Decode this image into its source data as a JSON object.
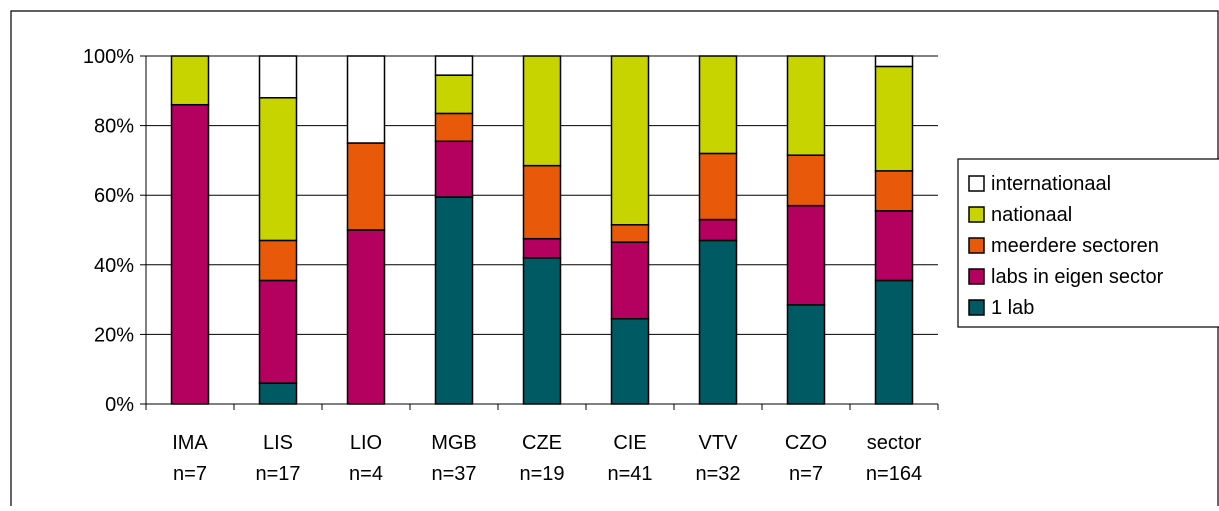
{
  "chart_data": {
    "type": "bar",
    "stacked": true,
    "percent": true,
    "categories": [
      "IMA\nn=7",
      "LIS\nn=17",
      "LIO\nn=4",
      "MGB\nn=37",
      "CZE\nn=19",
      "CIE\nn=41",
      "VTV\nn=32",
      "CZO\nn=7",
      "sector\nn=164"
    ],
    "series": [
      {
        "name": "1 lab",
        "color": "#005a64",
        "values": [
          0,
          6,
          0,
          59.5,
          42,
          24.5,
          47,
          28.5,
          35.5
        ]
      },
      {
        "name": "labs in eigen sector",
        "color": "#b4005f",
        "values": [
          86,
          29.5,
          50,
          16,
          5.5,
          22,
          6,
          28.5,
          20
        ]
      },
      {
        "name": "meerdere sectoren",
        "color": "#e85a0a",
        "values": [
          0,
          11.5,
          25,
          8,
          21,
          5,
          19,
          14.5,
          11.5
        ]
      },
      {
        "name": "nationaal",
        "color": "#c8d400",
        "values": [
          14,
          41,
          0,
          11,
          31.5,
          48.5,
          28,
          28.5,
          30
        ]
      },
      {
        "name": "internationaal",
        "color": "#ffffff",
        "values": [
          0,
          12,
          25,
          5.5,
          0,
          0,
          0,
          0,
          3
        ]
      }
    ],
    "yticks": [
      "0%",
      "20%",
      "40%",
      "60%",
      "80%",
      "100%"
    ],
    "ylim": [
      0,
      100
    ],
    "grid": true,
    "legend_position": "right",
    "legend_order": [
      "internationaal",
      "nationaal",
      "meerdere sectoren",
      "labs in eigen sector",
      "1 lab"
    ]
  }
}
